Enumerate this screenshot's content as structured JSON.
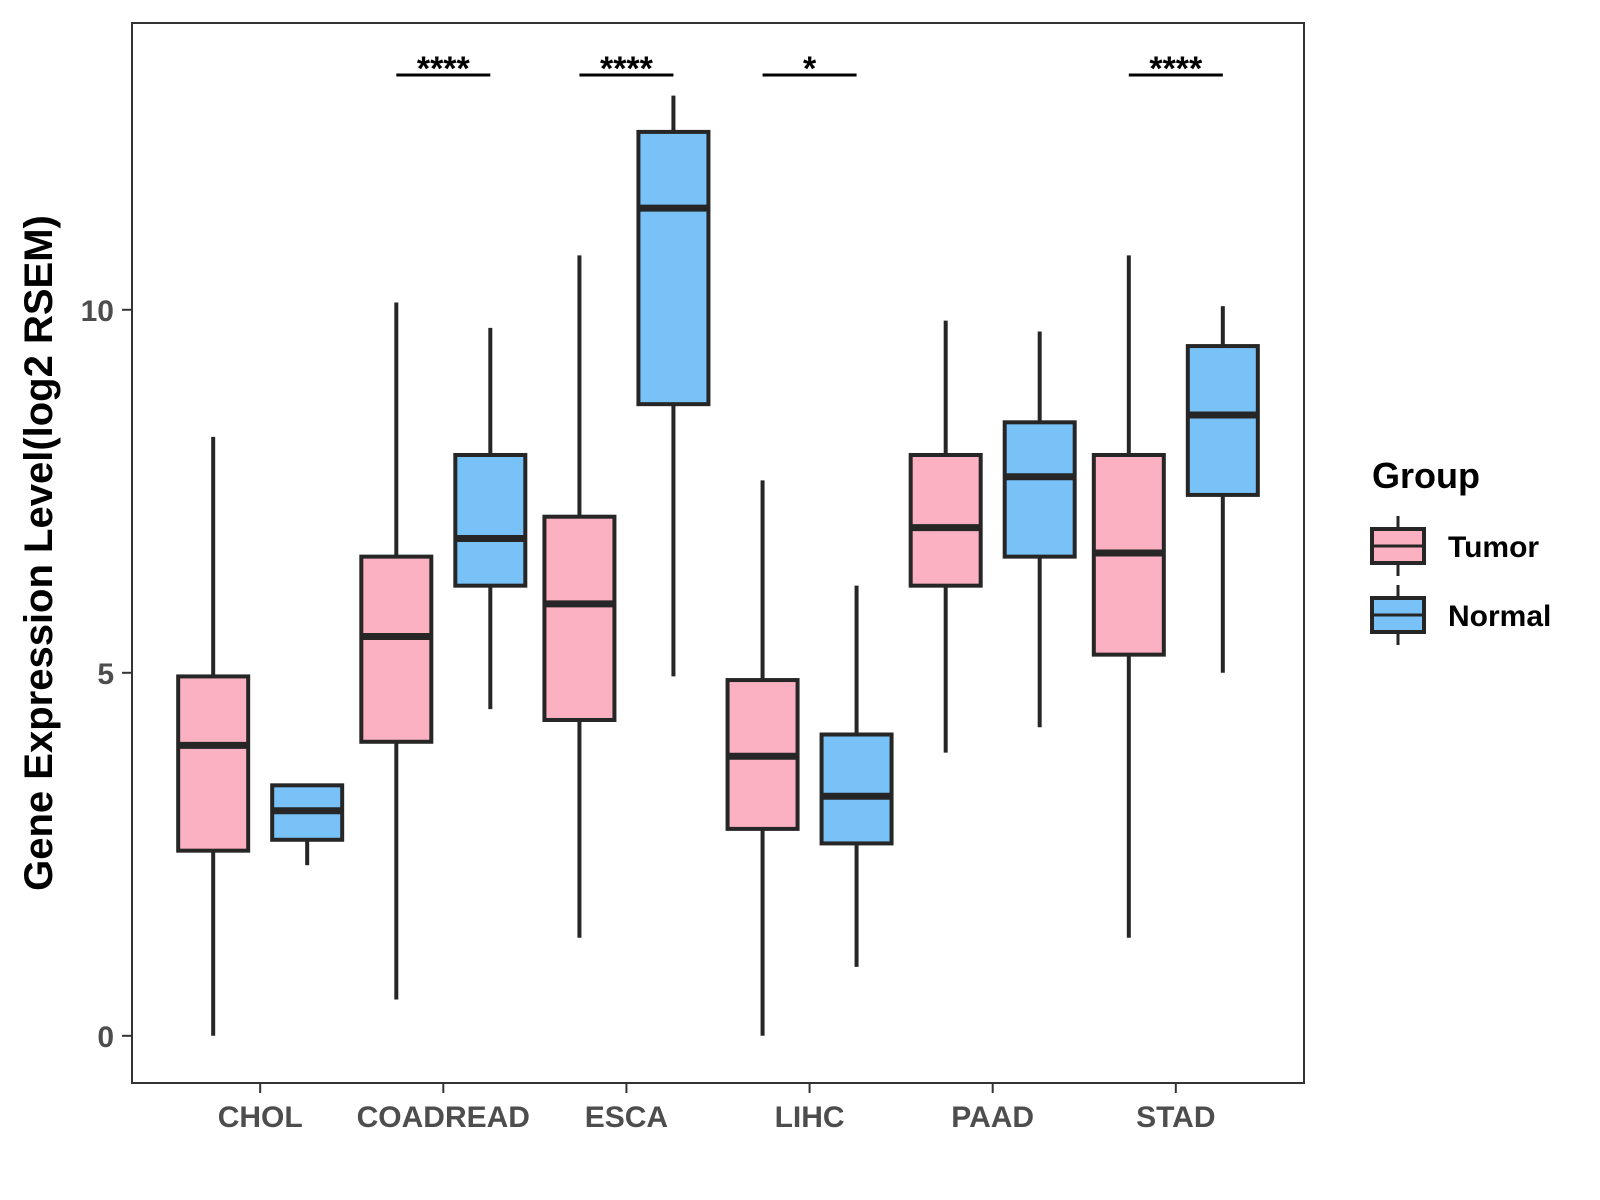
{
  "chart_data": {
    "type": "boxplot",
    "title": "",
    "xlabel": "",
    "ylabel": "Gene Expression Level(log2 RSEM)",
    "ylim": [
      -0.65,
      13.95
    ],
    "yticks": [
      0,
      5,
      10
    ],
    "grid": false,
    "legend_position": "right",
    "categories": [
      "CHOL",
      "COADREAD",
      "ESCA",
      "LIHC",
      "PAAD",
      "STAD"
    ],
    "series": [
      {
        "name": "Tumor",
        "color": "#FBB1C2",
        "boxes": [
          {
            "whisker_low": 0.0,
            "q1": 2.55,
            "median": 4.0,
            "q3": 4.95,
            "whisker_high": 8.25
          },
          {
            "whisker_low": 0.5,
            "q1": 4.05,
            "median": 5.5,
            "q3": 6.6,
            "whisker_high": 10.1
          },
          {
            "whisker_low": 1.35,
            "q1": 4.35,
            "median": 5.95,
            "q3": 7.15,
            "whisker_high": 10.75
          },
          {
            "whisker_low": 0.0,
            "q1": 2.85,
            "median": 3.85,
            "q3": 4.9,
            "whisker_high": 7.65
          },
          {
            "whisker_low": 3.9,
            "q1": 6.2,
            "median": 7.0,
            "q3": 8.0,
            "whisker_high": 9.85
          },
          {
            "whisker_low": 1.35,
            "q1": 5.25,
            "median": 6.65,
            "q3": 8.0,
            "whisker_high": 10.75
          }
        ]
      },
      {
        "name": "Normal",
        "color": "#79C2F8",
        "boxes": [
          {
            "whisker_low": 2.35,
            "q1": 2.7,
            "median": 3.1,
            "q3": 3.45,
            "whisker_high": 3.45
          },
          {
            "whisker_low": 4.5,
            "q1": 6.2,
            "median": 6.85,
            "q3": 8.0,
            "whisker_high": 9.75
          },
          {
            "whisker_low": 4.95,
            "q1": 8.7,
            "median": 11.4,
            "q3": 12.45,
            "whisker_high": 12.95
          },
          {
            "whisker_low": 0.95,
            "q1": 2.65,
            "median": 3.3,
            "q3": 4.15,
            "whisker_high": 6.2
          },
          {
            "whisker_low": 4.25,
            "q1": 6.6,
            "median": 7.7,
            "q3": 8.45,
            "whisker_high": 9.7
          },
          {
            "whisker_low": 5.0,
            "q1": 7.45,
            "median": 8.55,
            "q3": 9.5,
            "whisker_high": 10.05
          }
        ]
      }
    ],
    "significance": [
      "",
      "****",
      "****",
      "*",
      "",
      "****"
    ],
    "legend": {
      "title": "Group",
      "entries": [
        "Tumor",
        "Normal"
      ]
    }
  }
}
